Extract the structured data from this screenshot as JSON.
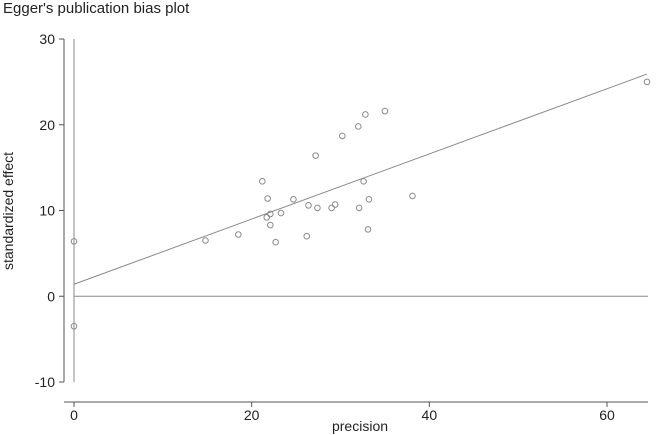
{
  "chart_data": {
    "type": "scatter",
    "title": "Egger's publication bias plot",
    "xlabel": "precision",
    "ylabel": "standardized effect",
    "xlim": [
      0,
      65
    ],
    "ylim": [
      -10,
      30
    ],
    "x_ticks": [
      0,
      20,
      40,
      60
    ],
    "y_ticks": [
      -10,
      0,
      10,
      20,
      30
    ],
    "grid": false,
    "legend": "none",
    "points": [
      {
        "x": 0,
        "y": 6.4
      },
      {
        "x": 0,
        "y": -3.5
      },
      {
        "x": 14.8,
        "y": 6.5
      },
      {
        "x": 18.5,
        "y": 7.2
      },
      {
        "x": 21.2,
        "y": 13.4
      },
      {
        "x": 21.7,
        "y": 9.2
      },
      {
        "x": 21.8,
        "y": 11.4
      },
      {
        "x": 22.1,
        "y": 9.6
      },
      {
        "x": 22.1,
        "y": 8.3
      },
      {
        "x": 22.7,
        "y": 6.3
      },
      {
        "x": 23.3,
        "y": 9.7
      },
      {
        "x": 24.7,
        "y": 11.3
      },
      {
        "x": 26.2,
        "y": 7.0
      },
      {
        "x": 26.4,
        "y": 10.6
      },
      {
        "x": 27.2,
        "y": 16.4
      },
      {
        "x": 27.4,
        "y": 10.3
      },
      {
        "x": 29.0,
        "y": 10.3
      },
      {
        "x": 29.4,
        "y": 10.7
      },
      {
        "x": 30.2,
        "y": 18.7
      },
      {
        "x": 32.0,
        "y": 19.8
      },
      {
        "x": 32.1,
        "y": 10.3
      },
      {
        "x": 32.6,
        "y": 13.4
      },
      {
        "x": 32.8,
        "y": 21.2
      },
      {
        "x": 33.1,
        "y": 7.8
      },
      {
        "x": 33.2,
        "y": 11.3
      },
      {
        "x": 35.0,
        "y": 21.6
      },
      {
        "x": 38.1,
        "y": 11.7
      },
      {
        "x": 64.5,
        "y": 25.0
      }
    ],
    "regression_line": {
      "intercept": 1.4,
      "slope": 0.38,
      "x_range": [
        0,
        64.5
      ]
    },
    "reference_lines": {
      "hline_y": 0,
      "vline_x": 0,
      "vline_y_range": [
        -10,
        30
      ]
    },
    "colors": {
      "axis": "#555555",
      "line": "#8a8a8a",
      "marker": "#8a8a8a"
    }
  }
}
